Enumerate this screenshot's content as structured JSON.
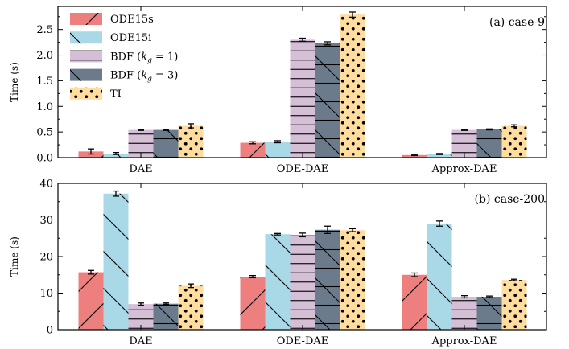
{
  "legend": [
    {
      "id": "ode15s",
      "label": "ODE15s"
    },
    {
      "id": "ode15i",
      "label": "ODE15i"
    },
    {
      "id": "bdf1",
      "label": "BDF (k_g = 1)",
      "label_main": "BDF (",
      "label_var": "k",
      "label_sub": "g",
      "label_tail": " = 1)"
    },
    {
      "id": "bdf3",
      "label": "BDF (k_g = 3)",
      "label_main": "BDF (",
      "label_var": "k",
      "label_sub": "g",
      "label_tail": " = 3)"
    },
    {
      "id": "ti",
      "label": "TI"
    }
  ],
  "colors": {
    "ode15s": "#ee7f7f",
    "ode15i": "#a9d8e6",
    "bdf1": "#d5bfd6",
    "bdf3": "#6c7b8b",
    "ti": "#fedd9f"
  },
  "chart_data": [
    {
      "type": "bar",
      "panel_label": "(a) case-9",
      "ylabel": "Time (s)",
      "categories": [
        "DAE",
        "ODE-DAE",
        "Approx-DAE"
      ],
      "ylim": [
        0,
        2.95
      ],
      "yticks": [
        0.0,
        0.5,
        1.0,
        1.5,
        2.0,
        2.5
      ],
      "ytick_labels": [
        "0.0",
        "0.5",
        "1.0",
        "1.5",
        "2.0",
        "2.5"
      ],
      "series": [
        {
          "id": "ode15s",
          "name": "ODE15s",
          "values": [
            0.12,
            0.29,
            0.05
          ],
          "errors": [
            0.05,
            0.02,
            0.01
          ]
        },
        {
          "id": "ode15i",
          "name": "ODE15i",
          "values": [
            0.08,
            0.31,
            0.07
          ],
          "errors": [
            0.02,
            0.02,
            0.01
          ]
        },
        {
          "id": "bdf1",
          "name": "BDF (k_g = 1)",
          "values": [
            0.54,
            2.3,
            0.54
          ],
          "errors": [
            0.01,
            0.03,
            0.01
          ]
        },
        {
          "id": "bdf3",
          "name": "BDF (k_g = 3)",
          "values": [
            0.54,
            2.23,
            0.55
          ],
          "errors": [
            0.01,
            0.03,
            0.01
          ]
        },
        {
          "id": "ti",
          "name": "TI",
          "values": [
            0.62,
            2.79,
            0.62
          ],
          "errors": [
            0.04,
            0.05,
            0.02
          ]
        }
      ]
    },
    {
      "type": "bar",
      "panel_label": "(b) case-200",
      "ylabel": "Time (s)",
      "categories": [
        "DAE",
        "ODE-DAE",
        "Approx-DAE"
      ],
      "ylim": [
        0,
        40
      ],
      "yticks": [
        0,
        10,
        20,
        30,
        40
      ],
      "ytick_labels": [
        "0",
        "10",
        "20",
        "30",
        "40"
      ],
      "series": [
        {
          "id": "ode15s",
          "name": "ODE15s",
          "values": [
            15.7,
            14.5,
            15.0
          ],
          "errors": [
            0.5,
            0.3,
            0.5
          ]
        },
        {
          "id": "ode15i",
          "name": "ODE15i",
          "values": [
            37.2,
            26.1,
            29.0
          ],
          "errors": [
            0.7,
            0.2,
            0.7
          ]
        },
        {
          "id": "bdf1",
          "name": "BDF (k_g = 1)",
          "values": [
            7.0,
            25.9,
            9.0
          ],
          "errors": [
            0.3,
            0.5,
            0.3
          ]
        },
        {
          "id": "bdf3",
          "name": "BDF (k_g = 3)",
          "values": [
            7.1,
            27.3,
            9.0
          ],
          "errors": [
            0.2,
            1.0,
            0.2
          ]
        },
        {
          "id": "ti",
          "name": "TI",
          "values": [
            12.0,
            27.2,
            13.6
          ],
          "errors": [
            0.5,
            0.4,
            0.2
          ]
        }
      ]
    }
  ]
}
